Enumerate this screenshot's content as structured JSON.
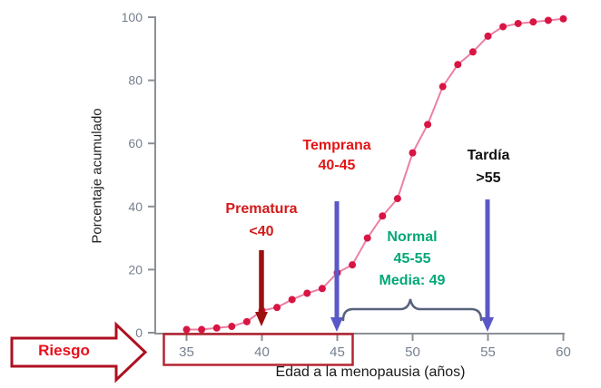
{
  "chart_data": {
    "type": "line",
    "title": "",
    "xlabel": "Edad a la menopausia (años)",
    "ylabel": "Porcentaje acumulado",
    "x": [
      35,
      36,
      37,
      38,
      39,
      40,
      41,
      42,
      43,
      44,
      45,
      46,
      47,
      48,
      49,
      50,
      51,
      52,
      53,
      54,
      55,
      56,
      57,
      58,
      59,
      60
    ],
    "values": [
      1,
      1,
      1.5,
      2,
      3.5,
      7,
      8,
      10.5,
      12.5,
      14,
      19,
      21.5,
      30,
      37,
      42.5,
      57,
      66,
      78,
      85,
      89,
      94,
      97,
      98,
      98.5,
      99,
      99.5
    ],
    "x_ticks": [
      35,
      40,
      45,
      50,
      55,
      60
    ],
    "y_ticks": [
      0,
      20,
      40,
      60,
      80,
      100
    ],
    "xlim": [
      33,
      60
    ],
    "ylim": [
      0,
      100
    ],
    "grid": false,
    "legend": "none",
    "marker": "circle",
    "annotations": [
      {
        "id": "prematura",
        "lines": [
          "Prematura",
          "<40"
        ],
        "color": "#d31b1b",
        "arrow_at_x": 40
      },
      {
        "id": "temprana",
        "lines": [
          "Temprana",
          "40-45"
        ],
        "color": "#e31515",
        "arrow_at_x": 45
      },
      {
        "id": "normal",
        "lines": [
          "Normal",
          "45-55",
          "Media: 49"
        ],
        "color": "#00a878",
        "brace_from_x": 45,
        "brace_to_x": 55
      },
      {
        "id": "tardia",
        "lines": [
          "Tardía",
          ">55"
        ],
        "color": "#111111",
        "arrow_at_x": 55
      },
      {
        "id": "riesgo",
        "lines": [
          "Riesgo"
        ],
        "color": "#e8101c",
        "highlight_range_x": [
          34,
          46
        ]
      }
    ]
  },
  "colors": {
    "curve-line": "#ec7fa3",
    "curve-dot": "#d81543",
    "axis": "#8b9097",
    "tick-label": "#76808f",
    "premature-text": "#d31b1b",
    "premature-arrow": "#9c1010",
    "early-text": "#e31515",
    "normal-text": "#00a878",
    "late-text": "#111111",
    "range-arrow": "#5a58c8",
    "brace": "#56627d",
    "risk-text": "#e8101c",
    "risk-border": "#ae1022",
    "risk-rect": "#b42431"
  }
}
